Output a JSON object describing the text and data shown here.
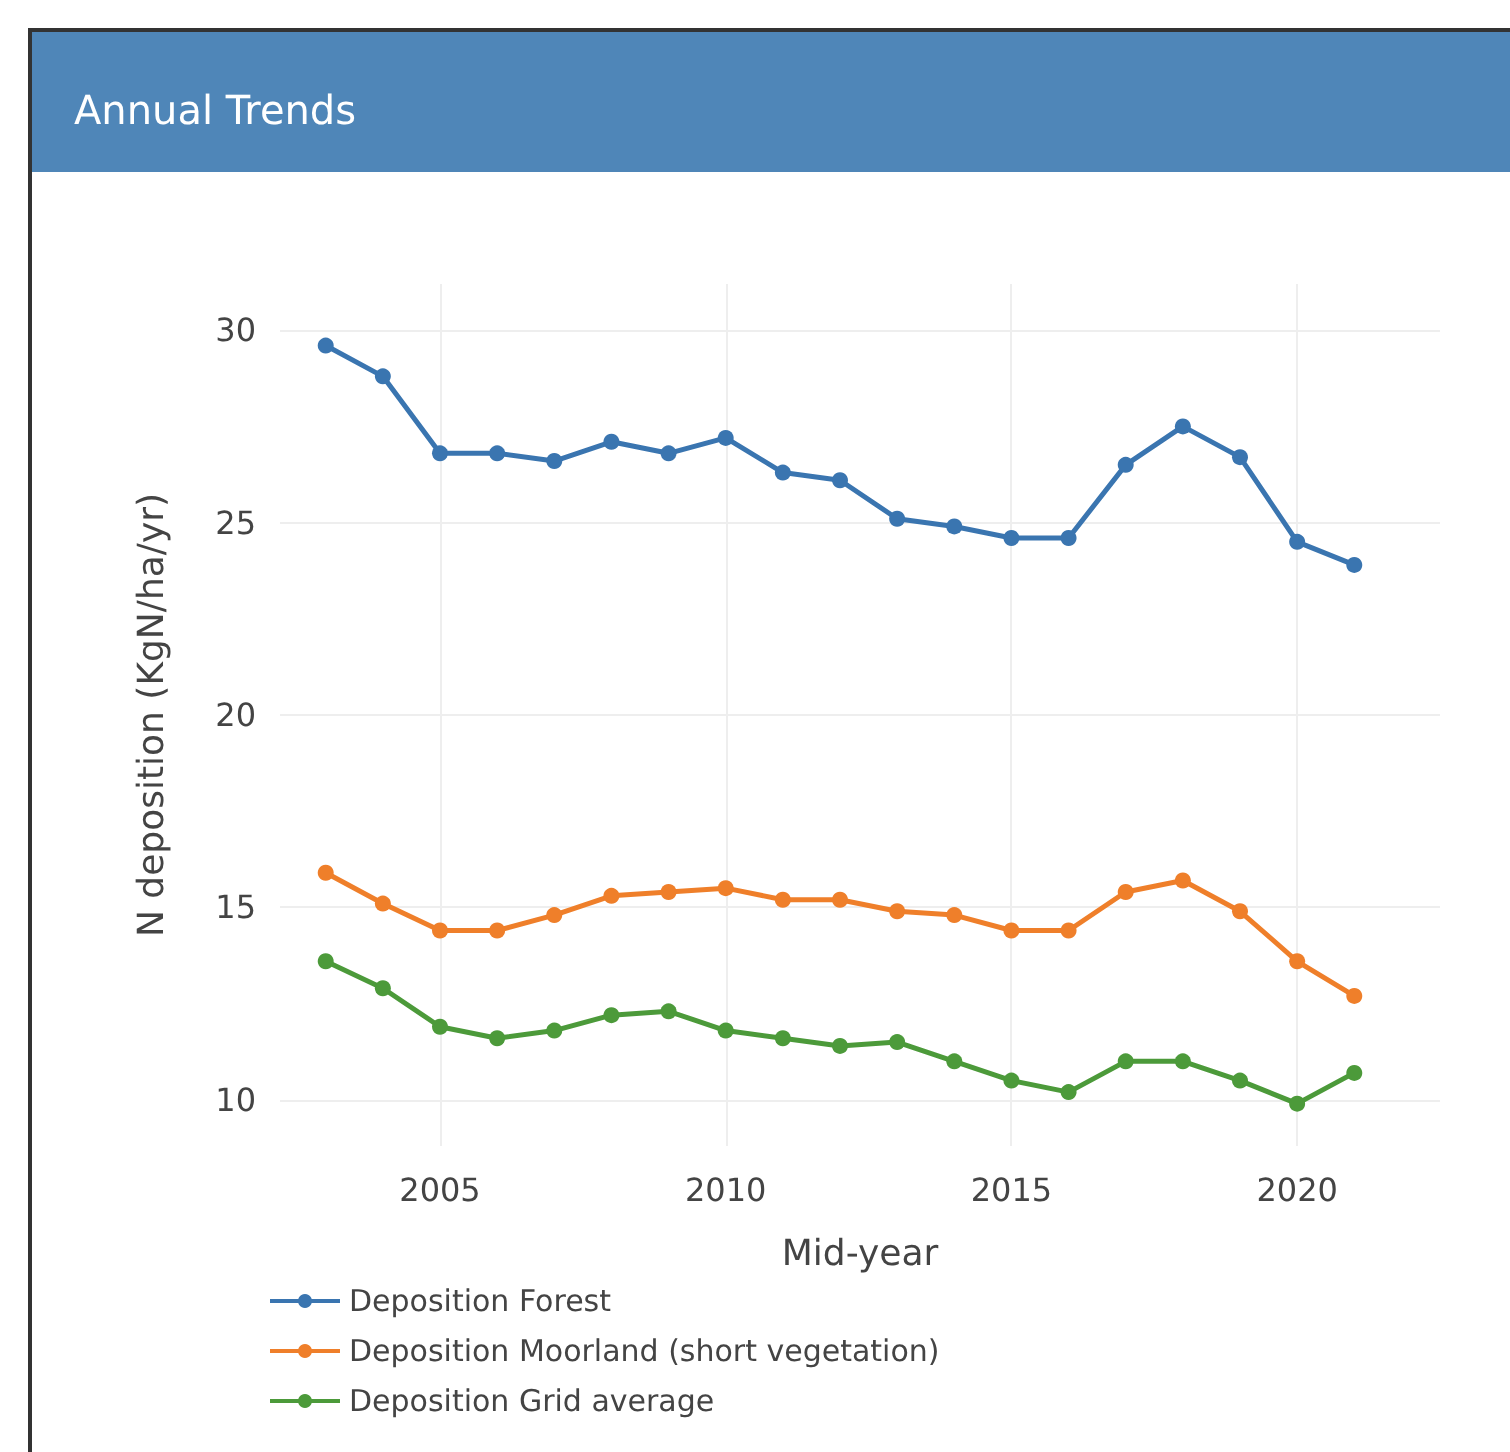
{
  "chart_data": {
    "type": "line",
    "title": "Annual Trends",
    "xlabel": "Mid-year",
    "ylabel": "N deposition (KgN/ha/yr)",
    "x": [
      2003,
      2004,
      2005,
      2006,
      2007,
      2008,
      2009,
      2010,
      2011,
      2012,
      2013,
      2014,
      2015,
      2016,
      2017,
      2018,
      2019,
      2020,
      2021
    ],
    "series": [
      {
        "name": "Deposition Forest",
        "color": "#3a75b0",
        "values": [
          29.6,
          28.8,
          26.8,
          26.8,
          26.6,
          27.1,
          26.8,
          27.2,
          26.3,
          26.1,
          25.1,
          24.9,
          24.6,
          24.6,
          26.5,
          27.5,
          26.7,
          24.5,
          23.9
        ]
      },
      {
        "name": "Deposition Moorland (short vegetation)",
        "color": "#ef7f2a",
        "values": [
          15.9,
          15.1,
          14.4,
          14.4,
          14.8,
          15.3,
          15.4,
          15.5,
          15.2,
          15.2,
          14.9,
          14.8,
          14.4,
          14.4,
          15.4,
          15.7,
          14.9,
          13.6,
          12.7
        ]
      },
      {
        "name": "Deposition Grid average",
        "color": "#4c9a3a",
        "values": [
          13.6,
          12.9,
          11.9,
          11.6,
          11.8,
          12.2,
          12.3,
          11.8,
          11.6,
          11.4,
          11.5,
          11.0,
          10.5,
          10.2,
          11.0,
          11.0,
          10.5,
          9.9,
          10.7
        ]
      }
    ],
    "xlim": [
      2002.2,
      2022.5
    ],
    "xticks": [
      2005,
      2010,
      2015,
      2020
    ],
    "ylim": [
      8.8,
      31.2
    ],
    "yticks": [
      10,
      15,
      20,
      25,
      30
    ],
    "grid": true,
    "legend": "bottom left",
    "marker": "circle",
    "line_style": "solid"
  }
}
